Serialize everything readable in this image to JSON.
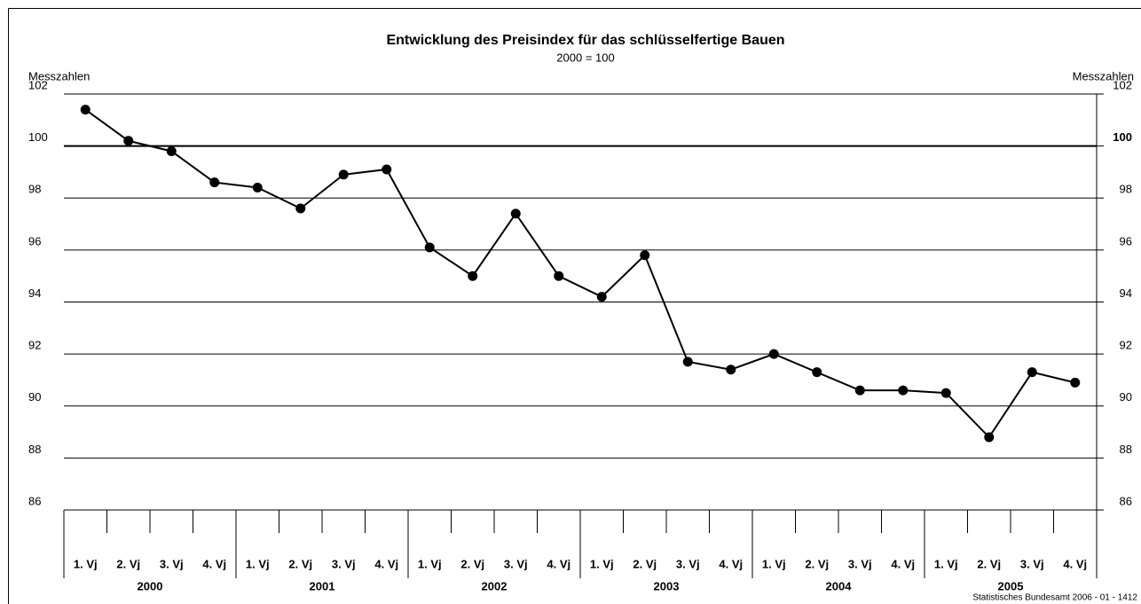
{
  "chart_data": {
    "type": "line",
    "title": "Entwicklung des Preisindex für das schlüsselfertige Bauen",
    "subtitle": "2000 = 100",
    "ylabel": "Messzahlen",
    "y2label": "Messzahlen",
    "categories": [
      "1. Vj",
      "2. Vj",
      "3. Vj",
      "4. Vj",
      "1. Vj",
      "2. Vj",
      "3. Vj",
      "4. Vj",
      "1. Vj",
      "2. Vj",
      "3. Vj",
      "4. Vj",
      "1. Vj",
      "2. Vj",
      "3. Vj",
      "4. Vj",
      "1. Vj",
      "2. Vj",
      "3. Vj",
      "4. Vj",
      "1. Vj",
      "2. Vj",
      "3. Vj",
      "4. Vj"
    ],
    "years": [
      "2000",
      "2001",
      "2002",
      "2003",
      "2004",
      "2005"
    ],
    "values": [
      101.4,
      100.2,
      99.8,
      98.6,
      98.4,
      97.6,
      98.9,
      99.1,
      96.1,
      95.0,
      97.4,
      95.0,
      94.2,
      95.8,
      91.7,
      91.4,
      92.0,
      91.3,
      90.6,
      90.6,
      90.5,
      88.8,
      91.3,
      90.9
    ],
    "color": "#000000",
    "ylim": [
      86,
      102
    ],
    "yticks": [
      86,
      88,
      90,
      92,
      94,
      96,
      98,
      100,
      102
    ],
    "y2lim": [
      86,
      102
    ],
    "y2ticks": [
      86,
      88,
      90,
      92,
      94,
      96,
      98,
      100,
      102
    ],
    "highlight": 100,
    "grid": true,
    "source": "Statistisches Bundesamt 2006 - 01 - 1412"
  }
}
